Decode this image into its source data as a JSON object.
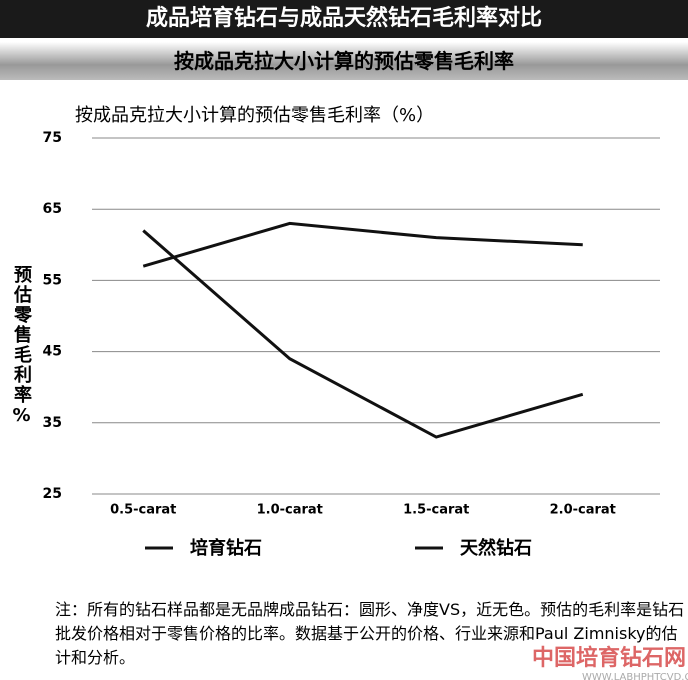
{
  "header": {
    "title": "成品培育钻石与成品天然钻石毛利率对比",
    "subtitle": "按成品克拉大小计算的预估零售毛利率"
  },
  "chart_data": {
    "type": "line",
    "title": "按成品克拉大小计算的预估零售毛利率（%）",
    "y_label": "预估零售毛利率%",
    "categories": [
      "0.5-carat",
      "1.0-carat",
      "1.5-carat",
      "2.0-carat"
    ],
    "series": [
      {
        "name": "培育钻石",
        "color": "#111111",
        "values": [
          57,
          63,
          61,
          60
        ]
      },
      {
        "name": "天然钻石",
        "color": "#111111",
        "values": [
          62,
          44,
          33,
          39
        ]
      }
    ],
    "ylim": [
      25,
      75
    ],
    "yticks": [
      25,
      35,
      45,
      55,
      65,
      75
    ],
    "grid": true
  },
  "note": "注：所有的钻石样品都是无品牌成品钻石：圆形、净度VS，近无色。预估的毛利率是钻石批发价格相对于零售价格的比率。数据基于公开的价格、行业来源和Paul Zimnisky的估计和分析。",
  "watermark": {
    "name": "中国培育钻石网",
    "url": "WWW.LABHPHTCVD.COM"
  }
}
